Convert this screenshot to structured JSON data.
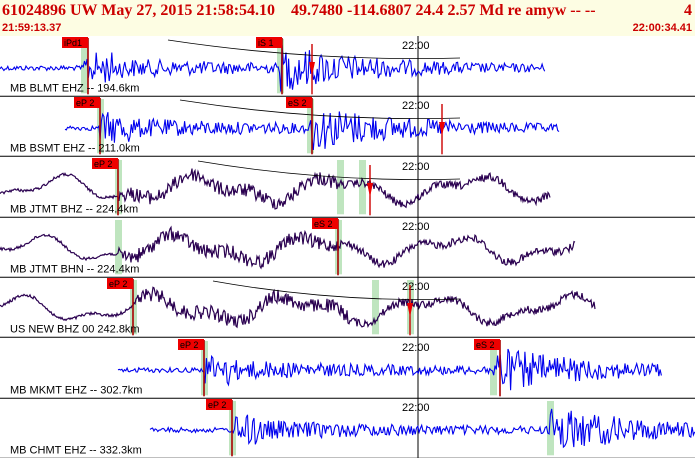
{
  "header": {
    "title": "61024896 UW May 27, 2015 21:58:54.10    49.7480 -114.6807 24.4 2.57 Md re amyw -- --",
    "count": "4",
    "start_time": "21:59:13.37",
    "end_time": "22:00:34.41"
  },
  "time_marker_label": "22:00",
  "colors": {
    "header_text": "#cc0000",
    "header_bg": "#fdfde3",
    "trace_blue": "#0000ee",
    "trace_purple": "#2a0050",
    "pick_box": "#ee0000",
    "pick_line": "#aa0000",
    "window": "#b4e0b4"
  },
  "traces": [
    {
      "label": "MB BLMT EHZ -- 194.6km",
      "kind": "hf",
      "color_key": "trace_blue",
      "extent": [
        0,
        545
      ],
      "picks": [
        {
          "label": "iPd1"
        },
        {
          "label": "iS 1"
        }
      ],
      "windows": [
        84,
        280
      ],
      "arrivals": [
        312
      ],
      "curve": true
    },
    {
      "label": "MB BSMT EHZ -- 211.0km",
      "kind": "hf",
      "color_key": "trace_blue",
      "extent": [
        65,
        560
      ],
      "picks": [
        {
          "label": "eP 2"
        },
        {
          "label": "eS 2"
        }
      ],
      "windows": [
        100,
        310
      ],
      "arrivals": [
        442
      ],
      "curve": true
    },
    {
      "label": "MB JTMT BHZ -- 224.4km",
      "kind": "lf",
      "color_key": "trace_purple",
      "extent": [
        0,
        550
      ],
      "picks": [
        {
          "label": "eP 2"
        }
      ],
      "windows": [
        118,
        340,
        362
      ],
      "arrivals": [
        370
      ],
      "curve": true
    },
    {
      "label": "MB JTMT BHN -- 224.4km",
      "kind": "lf",
      "color_key": "trace_purple",
      "extent": [
        0,
        575
      ],
      "picks": [
        {
          "label": "eS 2"
        }
      ],
      "windows": [
        118,
        338
      ],
      "arrivals": [],
      "curve": false
    },
    {
      "label": "US NEW BHZ 00 242.8km",
      "kind": "lf",
      "color_key": "trace_purple",
      "extent": [
        0,
        595
      ],
      "picks": [
        {
          "label": "eP 2"
        }
      ],
      "windows": [
        133,
        375,
        410
      ],
      "arrivals": [
        410
      ],
      "curve": true
    },
    {
      "label": "MB MKMT EHZ -- 302.7km",
      "kind": "hf",
      "color_key": "trace_blue",
      "extent": [
        118,
        662
      ],
      "picks": [
        {
          "label": "eP 2"
        },
        {
          "label": "eS 2"
        }
      ],
      "windows": [
        204,
        493
      ],
      "arrivals": [],
      "curve": false
    },
    {
      "label": "MB CHMT EHZ -- 332.3km",
      "kind": "hf",
      "color_key": "trace_blue",
      "extent": [
        150,
        695
      ],
      "picks": [
        {
          "label": "eP 2"
        }
      ],
      "windows": [
        232,
        550
      ],
      "arrivals": [],
      "curve": false
    }
  ]
}
